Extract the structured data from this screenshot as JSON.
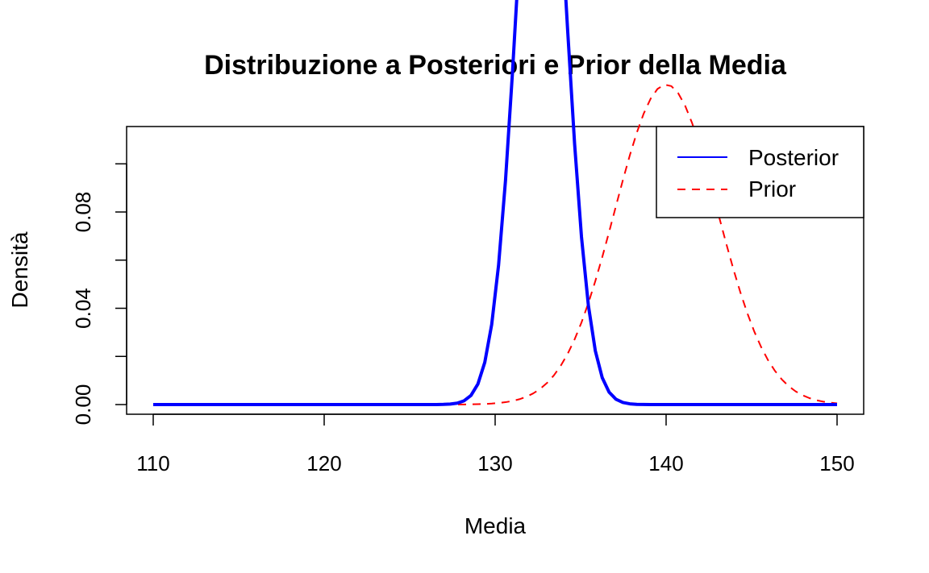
{
  "chart_data": {
    "type": "line",
    "title": "Distribuzione a Posteriori e Prior della Media",
    "xlabel": "Media",
    "ylabel": "Densità",
    "xlim": [
      110,
      150
    ],
    "ylim": [
      0,
      0.1155
    ],
    "x_ticks": [
      110,
      120,
      130,
      140,
      150
    ],
    "y_ticks": [
      0,
      0.02,
      0.04,
      0.06,
      0.08,
      0.1
    ],
    "y_tick_labels": [
      "0.00",
      "",
      "0.04",
      "",
      "0.08",
      ""
    ],
    "x_tick_labels": [
      "110",
      "120",
      "130",
      "140",
      "150"
    ],
    "legend": {
      "placement": "top-right"
    },
    "series": [
      {
        "name": "Posterior",
        "color": "#0000ff",
        "style": "solid",
        "distribution": {
          "family": "normal",
          "mean": 132.7,
          "sd": 1.4
        },
        "x_range": [
          110,
          150
        ],
        "n_points": 100
      },
      {
        "name": "Prior",
        "color": "#ff0000",
        "style": "dashed",
        "distribution": {
          "family": "normal",
          "mean": 140,
          "sd": 3
        },
        "x_range": [
          110,
          150
        ],
        "n_points": 100
      }
    ]
  }
}
